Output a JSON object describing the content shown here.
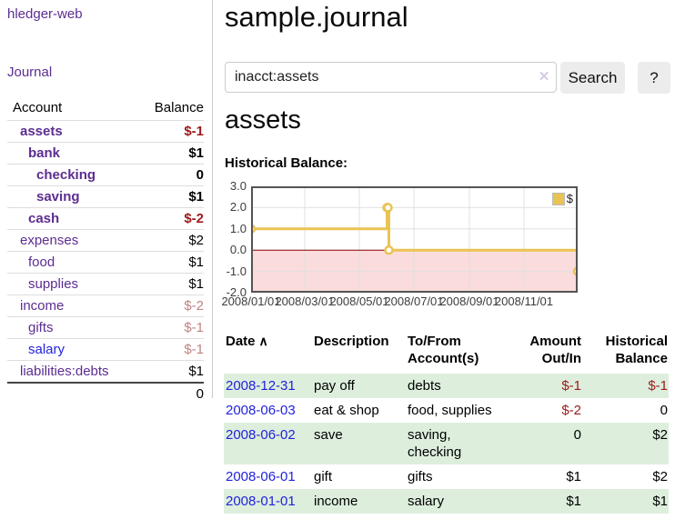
{
  "app": {
    "brand": "hledger-web",
    "nav": {
      "journal": "Journal"
    }
  },
  "sidebar": {
    "headers": {
      "account": "Account",
      "balance": "Balance"
    },
    "accounts": [
      {
        "name": "assets",
        "depth": 1,
        "balance": "$-1",
        "bold": true,
        "link_color": "purple",
        "balance_color": "negative"
      },
      {
        "name": "bank",
        "depth": 2,
        "balance": "$1",
        "bold": true,
        "link_color": "purple",
        "balance_color": "normal"
      },
      {
        "name": "checking",
        "depth": 3,
        "balance": "0",
        "bold": true,
        "link_color": "purple",
        "balance_color": "normal"
      },
      {
        "name": "saving",
        "depth": 3,
        "balance": "$1",
        "bold": true,
        "link_color": "purple",
        "balance_color": "normal"
      },
      {
        "name": "cash",
        "depth": 2,
        "balance": "$-2",
        "bold": true,
        "link_color": "purple",
        "balance_color": "negative"
      },
      {
        "name": "expenses",
        "depth": 1,
        "balance": "$2",
        "bold": false,
        "link_color": "purple",
        "balance_color": "normal"
      },
      {
        "name": "food",
        "depth": 2,
        "balance": "$1",
        "bold": false,
        "link_color": "purple",
        "balance_color": "normal"
      },
      {
        "name": "supplies",
        "depth": 2,
        "balance": "$1",
        "bold": false,
        "link_color": "purple",
        "balance_color": "normal"
      },
      {
        "name": "income",
        "depth": 1,
        "balance": "$-2",
        "bold": false,
        "link_color": "purple",
        "balance_color": "negative-muted"
      },
      {
        "name": "gifts",
        "depth": 2,
        "balance": "$-1",
        "bold": false,
        "link_color": "purple",
        "balance_color": "negative-muted"
      },
      {
        "name": "salary",
        "depth": 2,
        "balance": "$-1",
        "bold": false,
        "link_color": "blue",
        "balance_color": "negative-muted"
      },
      {
        "name": "liabilities:debts",
        "depth": 1,
        "balance": "$1",
        "bold": false,
        "link_color": "purple",
        "balance_color": "normal"
      }
    ],
    "total": "0"
  },
  "main": {
    "title": "sample.journal",
    "search": {
      "value": "inacct:assets",
      "clear_icon": "×",
      "search_button": "Search",
      "help_button": "?"
    },
    "account_heading": "assets",
    "chart_title": "Historical Balance:"
  },
  "chart_data": {
    "type": "line",
    "style": "step-after-with-markers",
    "title": "Historical Balance:",
    "series": [
      {
        "name": "$",
        "color": "#e9c353",
        "points": [
          [
            "2008-01-01",
            1
          ],
          [
            "2008-06-01",
            2
          ],
          [
            "2008-06-02",
            2
          ],
          [
            "2008-06-03",
            0
          ],
          [
            "2008-12-31",
            -1
          ]
        ]
      }
    ],
    "ylim": [
      -2,
      3
    ],
    "yticks": [
      3,
      2,
      1,
      0,
      -1,
      -2
    ],
    "ytick_labels": [
      "3.0",
      "2.0",
      "1.0",
      "0.0",
      "-1.0",
      "-2.0"
    ],
    "xticks": [
      "2008-01-01",
      "2008-03-01",
      "2008-05-01",
      "2008-07-01",
      "2008-09-01",
      "2008-11-01"
    ],
    "xtick_labels": [
      "2008/01/01",
      "2008/03/01",
      "2008/05/01",
      "2008/07/01",
      "2008/09/01",
      "2008/11/01"
    ],
    "xrange": [
      "2008-01-01",
      "2008-12-31"
    ],
    "grid": true,
    "legend": {
      "label": "$",
      "position": "top-right"
    },
    "negative_region_color": "#fadcdc",
    "zero_line_color": "#8b0000"
  },
  "register": {
    "headers": {
      "date": "Date",
      "sort_indicator": "∧",
      "description": "Description",
      "accounts": "To/From Account(s)",
      "amount": "Amount Out/In",
      "balance": "Historical Balance"
    },
    "rows": [
      {
        "date": "2008-12-31",
        "description": "pay off",
        "accounts": "debts",
        "amount": "$-1",
        "amount_color": "negative",
        "balance": "$-1",
        "balance_color": "negative",
        "shaded": true
      },
      {
        "date": "2008-06-03",
        "description": "eat & shop",
        "accounts": "food, supplies",
        "amount": "$-2",
        "amount_color": "negative",
        "balance": "0",
        "balance_color": "normal",
        "shaded": false
      },
      {
        "date": "2008-06-02",
        "description": "save",
        "accounts": "saving, checking",
        "amount": "0",
        "amount_color": "normal",
        "balance": "$2",
        "balance_color": "normal",
        "shaded": true
      },
      {
        "date": "2008-06-01",
        "description": "gift",
        "accounts": "gifts",
        "amount": "$1",
        "amount_color": "normal",
        "balance": "$2",
        "balance_color": "normal",
        "shaded": false
      },
      {
        "date": "2008-01-01",
        "description": "income",
        "accounts": "salary",
        "amount": "$1",
        "amount_color": "normal",
        "balance": "$1",
        "balance_color": "normal",
        "shaded": true
      }
    ]
  },
  "colors": {
    "link_purple": "#5c2d91",
    "link_blue": "#2222dd",
    "negative": "#9d1a1a",
    "negative_muted": "#c08383",
    "row_shade_green": "#ddeedd",
    "chart_line_gold": "#e9c353",
    "chart_negative_fill": "#fadcdc",
    "zero_line": "#8b0000",
    "button_bg": "#ececec"
  }
}
